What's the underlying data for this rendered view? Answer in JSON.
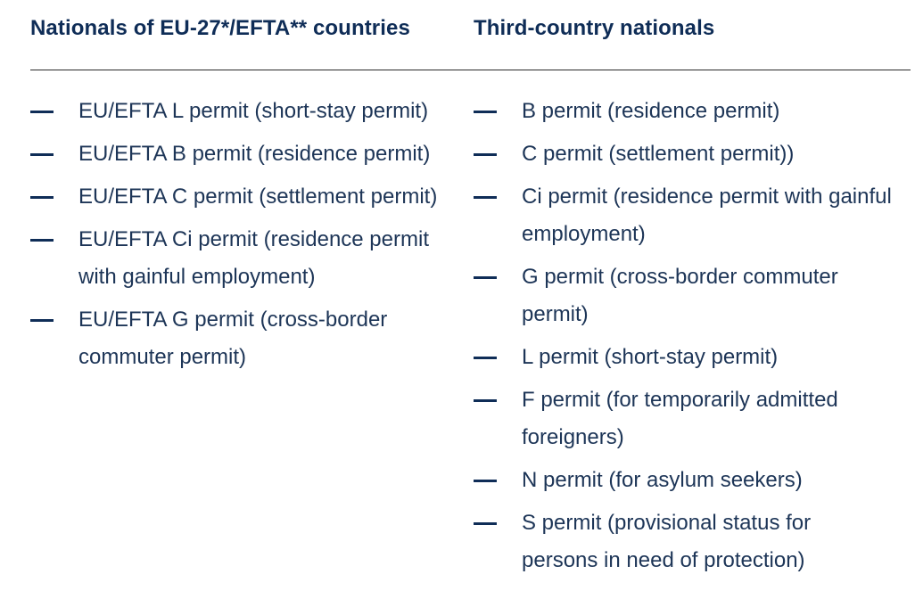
{
  "headers": {
    "eu_efta": "Nationals of EU-27*/EFTA** countries",
    "third_country": "Third-country nationals"
  },
  "eu_efta_permits": [
    "EU/EFTA L permit (short-stay permit)",
    "EU/EFTA B permit (residence permit)",
    "EU/EFTA C permit (settlement permit)",
    "EU/EFTA Ci permit (residence permit with gainful employment)",
    "EU/EFTA G permit (cross-border commuter permit)"
  ],
  "third_country_permits": [
    "B permit (residence permit)",
    "C permit (settlement permit))",
    "Ci permit (residence permit with gainful employment)",
    "G permit (cross-border commuter permit)",
    "L permit (short-stay permit)",
    "F permit (for temporarily admitted foreigners)",
    "N permit (for asylum seekers)",
    "S permit (provisional status for persons in need of protection)"
  ]
}
